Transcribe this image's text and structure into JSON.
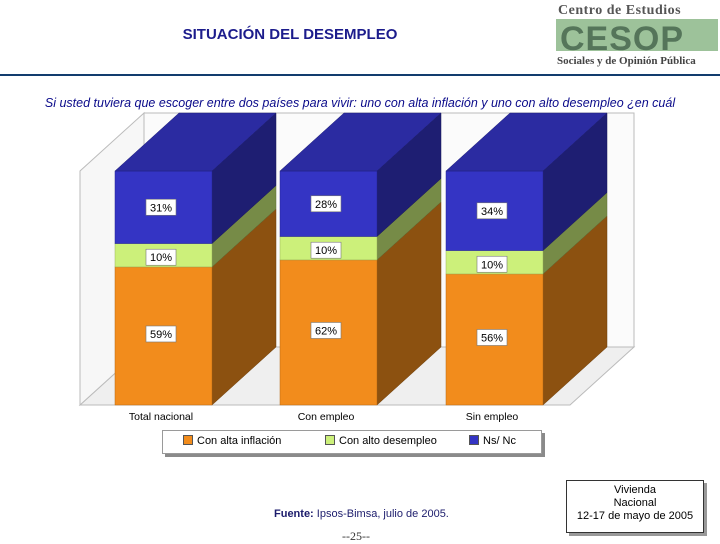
{
  "header": {
    "title": "SITUACIÓN DEL DESEMPLEO",
    "logo": {
      "line1": "Centro de Estudios",
      "mark": "CESOP",
      "line2": "Sociales y de Opinión Pública"
    }
  },
  "question": "Si usted tuviera que escoger entre dos países para vivir: uno con alta inflación y uno con alto desempleo ¿en cuál preferiría vivir?",
  "colors": {
    "inflacion": "#f28c1c",
    "desempleo": "#ccf07a",
    "nsnc": "#3434c4"
  },
  "chart_data": {
    "type": "bar",
    "stacked": true,
    "percent": true,
    "title": "",
    "xlabel": "",
    "ylabel": "",
    "ylim": [
      0,
      100
    ],
    "categories": [
      "Total nacional",
      "Con empleo",
      "Sin empleo"
    ],
    "series": [
      {
        "name": "Con alta inflación",
        "values": [
          59,
          62,
          56
        ],
        "labels": [
          "59%",
          "62%",
          "56%"
        ]
      },
      {
        "name": "Con alto desempleo",
        "values": [
          10,
          10,
          10
        ],
        "labels": [
          "10%",
          "10%",
          "10%"
        ]
      },
      {
        "name": "Ns/ Nc",
        "values": [
          31,
          28,
          34
        ],
        "labels": [
          "31%",
          "28%",
          "34%"
        ]
      }
    ],
    "legend": "bottom"
  },
  "footer": {
    "source_label": "Fuente:",
    "source_text": "Ipsos-Bimsa, julio de 2005.",
    "page": "--25--",
    "survey": {
      "type1": "Vivienda",
      "type2": "Nacional",
      "date": "12-17 de mayo de 2005"
    }
  }
}
